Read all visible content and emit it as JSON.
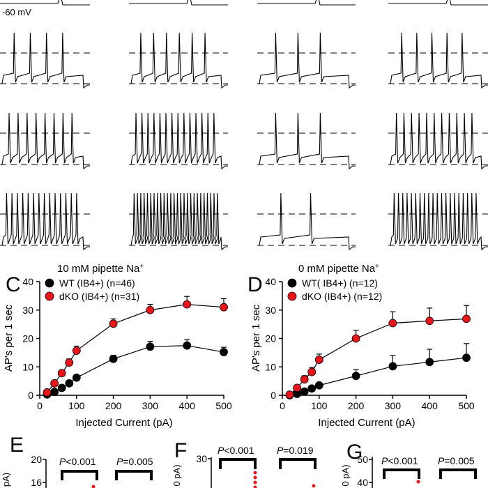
{
  "trace_label": "-60 mV",
  "colors": {
    "wt": "#000000",
    "dko": "#e8151b",
    "line": "#000000"
  },
  "chart_data": [
    {
      "type": "line",
      "panel": "C",
      "title": "10 mM pipette Na",
      "title_superscript": "+",
      "xlabel": "Injected Current (pA)",
      "ylabel": "AP's per 1 sec",
      "xlim": [
        0,
        500
      ],
      "ylim": [
        0,
        40
      ],
      "xticks": [
        0,
        100,
        200,
        300,
        400,
        500
      ],
      "yticks": [
        0,
        10,
        20,
        30,
        40
      ],
      "grid": false,
      "legend_position": "top-left",
      "x": [
        20,
        40,
        60,
        80,
        100,
        200,
        300,
        400,
        500
      ],
      "series": [
        {
          "name": "WT (IB4+) (n=46)",
          "color": "#000000",
          "values": [
            0.3,
            1.2,
            2.6,
            4.2,
            6.2,
            12.8,
            17.1,
            17.5,
            15.2
          ],
          "errors": [
            0.3,
            0.4,
            0.6,
            0.8,
            0.9,
            1.3,
            1.9,
            2.1,
            1.7
          ]
        },
        {
          "name": "dKO (IB4+) (n=31)",
          "color": "#e8151b",
          "values": [
            1.0,
            4.2,
            7.8,
            11.5,
            15.7,
            25.2,
            30.0,
            32.0,
            31.0
          ],
          "errors": [
            0.5,
            0.8,
            1.0,
            1.3,
            1.6,
            1.7,
            2.0,
            2.8,
            3.0
          ]
        }
      ]
    },
    {
      "type": "line",
      "panel": "D",
      "title": "0 mM pipette Na",
      "title_superscript": "+",
      "xlabel": "Injected Current (pA)",
      "ylabel": "AP's per 1 sec",
      "xlim": [
        0,
        500
      ],
      "ylim": [
        0,
        40
      ],
      "xticks": [
        0,
        100,
        200,
        300,
        400,
        500
      ],
      "yticks": [
        0,
        10,
        20,
        30,
        40
      ],
      "grid": false,
      "legend_position": "top-left",
      "x": [
        20,
        40,
        60,
        80,
        100,
        200,
        300,
        400,
        500
      ],
      "series": [
        {
          "name": "WT( IB4+) (n=12)",
          "color": "#000000",
          "values": [
            0.0,
            0.5,
            1.3,
            2.4,
            3.5,
            6.8,
            10.2,
            11.7,
            13.2
          ],
          "errors": [
            0.1,
            0.4,
            0.6,
            0.9,
            1.0,
            2.2,
            3.8,
            4.5,
            5.0
          ]
        },
        {
          "name": "dKO (IB4+) (n=12)",
          "color": "#e8151b",
          "values": [
            0.2,
            2.6,
            5.6,
            8.2,
            12.5,
            20.0,
            25.4,
            26.2,
            26.9
          ],
          "errors": [
            0.3,
            0.8,
            1.3,
            1.6,
            2.0,
            2.9,
            4.0,
            4.5,
            4.7
          ]
        }
      ]
    }
  ],
  "panels": {
    "C": {
      "letter": "C"
    },
    "D": {
      "letter": "D"
    },
    "E": {
      "letter": "E",
      "ylabel": "pA)",
      "ytick_top": "20",
      "ytick_2": "16",
      "p1": {
        "italic": "P",
        "rest": "<0.001"
      },
      "p2": {
        "italic": "P",
        "rest": "=0.005"
      }
    },
    "F": {
      "letter": "F",
      "ylabel": "0 pA)",
      "ytick_top": "30",
      "p1": {
        "italic": "P",
        "rest": "<0.001"
      },
      "p2": {
        "italic": "P",
        "rest": "=0.019"
      }
    },
    "G": {
      "letter": "G",
      "ylabel": "0 pA)",
      "ytick_top": "50",
      "ytick_2": "40",
      "p1": {
        "italic": "P",
        "rest": "<0.001"
      },
      "p2": {
        "italic": "P",
        "rest": "=0.005"
      }
    }
  }
}
